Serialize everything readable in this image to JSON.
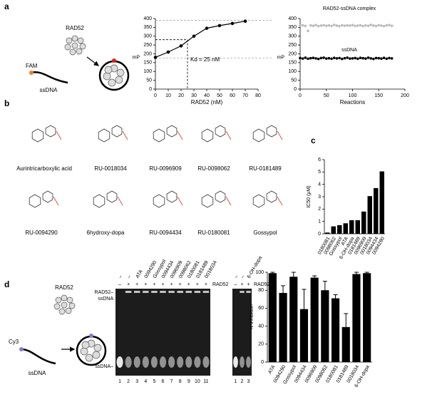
{
  "panel_labels": [
    "a",
    "b",
    "c",
    "d"
  ],
  "diagram_a": {
    "protein": "RAD52",
    "probe": "FAM",
    "dna": "ssDNA"
  },
  "compounds": [
    "Aurintricarboxylic acid",
    "RU-0018034",
    "RU-0096909",
    "RU-0098062",
    "RU-0181489",
    "RU-0094290",
    "6hydroxy-dopa",
    "RU-0094434",
    "RU-0180081",
    "Gossypol"
  ],
  "gel": {
    "compounds": [
      "–",
      "–",
      "ATA",
      "0094290",
      "Gossypol",
      "0094434",
      "0096909",
      "0098062",
      "0180081",
      "0181489",
      "0018034"
    ],
    "rad52": [
      "–",
      "+",
      "+",
      "+",
      "+",
      "+",
      "+",
      "+",
      "+",
      "+",
      "+"
    ],
    "rad52_label": "RAD52",
    "complex_label": [
      "RAD52–",
      "ssDNA"
    ],
    "free_label": "ssDNA–",
    "lanes": [
      "1",
      "2",
      "3",
      "4",
      "5",
      "6",
      "7",
      "8",
      "9",
      "10",
      "11"
    ]
  },
  "gel2": {
    "compounds": [
      "–",
      "–",
      "6-OH-dopa"
    ],
    "rad52": [
      "–",
      "+",
      "+"
    ],
    "rad52_label": "RAD52",
    "lanes": [
      "1",
      "2",
      "3"
    ]
  },
  "diagram_d": {
    "protein": "RAD52",
    "probe": "Cy3",
    "dna": "ssDNA"
  },
  "chart_data": [
    {
      "type": "line",
      "xlabel": "RAD52 (nM)",
      "ylabel": "mP",
      "x": [
        0,
        10,
        20,
        30,
        40,
        50,
        60,
        70
      ],
      "values": [
        180,
        210,
        245,
        300,
        345,
        360,
        372,
        385
      ],
      "color": "#000000",
      "xlim": [
        0,
        80
      ],
      "xticks": [
        0,
        10,
        20,
        30,
        40,
        50,
        60,
        70,
        80
      ],
      "ylim": [
        0,
        400
      ],
      "yticks": [
        0,
        50,
        100,
        150,
        200,
        250,
        300,
        350,
        400
      ],
      "ref_lines": [
        390,
        175
      ],
      "kd": {
        "x": 25,
        "y": 280
      },
      "annotation": "Kd = 25 nM"
    },
    {
      "type": "scatter",
      "xlabel": "Reactions",
      "ylabel": "mP",
      "x": [
        0,
        5,
        10,
        15,
        20,
        25,
        30,
        35,
        40,
        45,
        50,
        55,
        60,
        65,
        70,
        75,
        80,
        85,
        90,
        95,
        100,
        105,
        110,
        115,
        120,
        125,
        130,
        135,
        140,
        145,
        150,
        155,
        160,
        165,
        170,
        175
      ],
      "series": [
        {
          "name": "RAD52-ssDNA complex",
          "color": "#bbbbbb",
          "values": [
            360,
            362,
            358,
            330,
            361,
            359,
            363,
            357,
            360,
            362,
            359,
            361,
            358,
            364,
            360,
            357,
            362,
            359,
            361,
            360,
            363,
            358,
            360,
            362,
            357,
            361,
            359,
            364,
            360,
            358,
            362,
            360,
            357,
            361,
            363,
            359
          ]
        },
        {
          "name": "ssDNA",
          "color": "#000000",
          "values": [
            176,
            173,
            178,
            172,
            175,
            177,
            174,
            171,
            176,
            178,
            173,
            175,
            172,
            177,
            174,
            176,
            171,
            175,
            178,
            173,
            174,
            176,
            172,
            177,
            175,
            173,
            178,
            174,
            171,
            176,
            175,
            173,
            177,
            172,
            176,
            174
          ]
        }
      ],
      "xlim": [
        0,
        200
      ],
      "xticks": [
        0,
        50,
        100,
        150,
        200
      ],
      "ylim": [
        0,
        400
      ],
      "yticks": [
        0,
        50,
        100,
        150,
        200,
        250,
        300,
        350,
        400
      ]
    },
    {
      "type": "bar",
      "ylabel": "IC50 (μM)",
      "categories": [
        "0180081",
        "0098062",
        "Gossypol",
        "ATA",
        "6-OH-dopa",
        "0181489",
        "0096909",
        "0018034",
        "0094434",
        "0094290"
      ],
      "values": [
        0.1,
        0.6,
        0.7,
        0.85,
        1.1,
        1.1,
        1.8,
        3.05,
        3.7,
        5.05
      ],
      "color": "#000000",
      "ylim": [
        0,
        6
      ],
      "yticks": [
        0,
        1,
        2,
        3,
        4,
        5,
        6
      ]
    },
    {
      "type": "bar",
      "ylabel": "% inhibition",
      "categories": [
        "ATA",
        "0094290",
        "Gossypol",
        "0094434",
        "0096909",
        "0098062",
        "0180081",
        "0181489",
        "0018034",
        "6-OH-dopa"
      ],
      "values": [
        99,
        77,
        95,
        59,
        94,
        80,
        71,
        39,
        98,
        99
      ],
      "errors": [
        1,
        8,
        5,
        22,
        2,
        10,
        4,
        15,
        2,
        1
      ],
      "color": "#000000",
      "ylim": [
        0,
        100
      ],
      "yticks": [
        0,
        20,
        40,
        60,
        80,
        100
      ]
    }
  ]
}
